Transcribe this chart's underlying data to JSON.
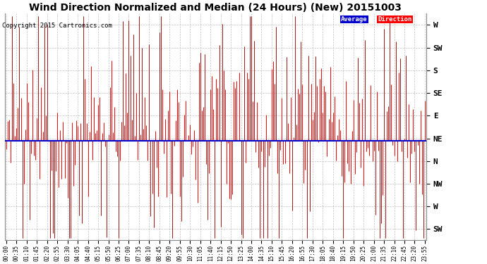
{
  "title": "Wind Direction Normalized and Median (24 Hours) (New) 20151003",
  "copyright": "Copyright 2015 Cartronics.com",
  "background_color": "#ffffff",
  "plot_bg_color": "#ffffff",
  "grid_color": "#b0b0b0",
  "ytick_labels": [
    "W",
    "SW",
    "S",
    "SE",
    "E",
    "NE",
    "N",
    "NW",
    "W",
    "SW"
  ],
  "ytick_values": [
    9,
    8,
    7,
    6,
    5,
    4,
    3,
    2,
    1,
    0
  ],
  "ylim": [
    -0.5,
    9.5
  ],
  "data_color": "#ff0000",
  "median_color": "#0000cd",
  "median_value": 3.9,
  "legend_avg_bg": "#0000cc",
  "legend_avg_text": "Average",
  "legend_dir_bg": "#ff0000",
  "legend_dir_text": "Direction",
  "title_fontsize": 10,
  "copyright_fontsize": 6.5,
  "num_points": 288,
  "seed": 12345,
  "xtick_every_n": 7
}
